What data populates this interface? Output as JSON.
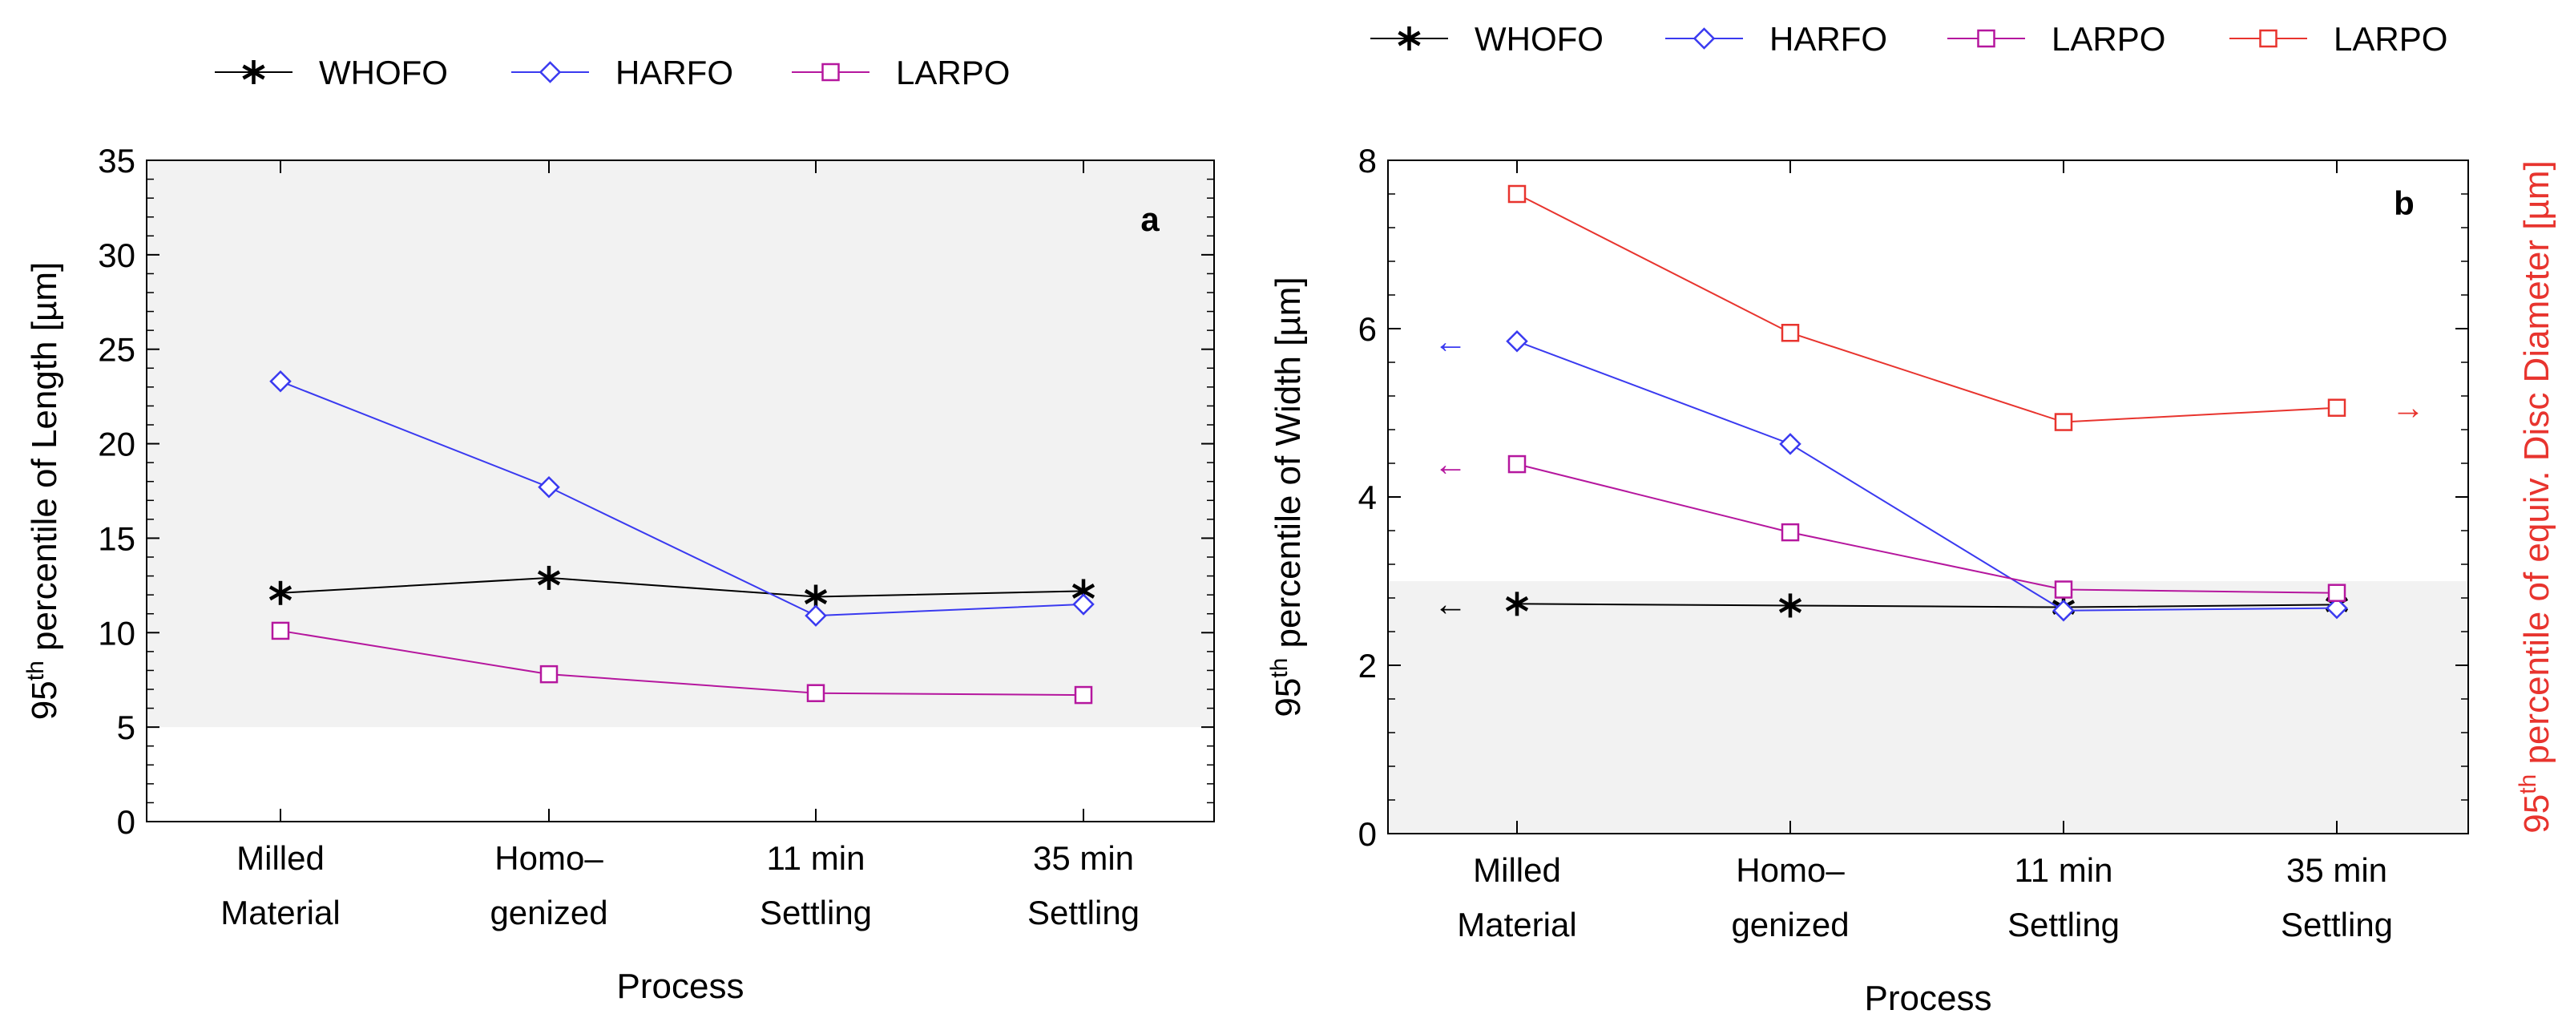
{
  "chart_data": [
    {
      "id": "a",
      "type": "line",
      "panel_label": "a",
      "categories": [
        [
          "Milled",
          "Material"
        ],
        [
          "Homo–",
          "genized"
        ],
        [
          "11 min",
          "Settling"
        ],
        [
          "35 min",
          "Settling"
        ]
      ],
      "xlabel": "Process",
      "ylabel_prefix": "95",
      "ylabel_sup": "th",
      "ylabel_suffix": " percentile of Length [µm]",
      "ylim": [
        0,
        35
      ],
      "yticks": [
        "0",
        "5",
        "10",
        "15",
        "20",
        "25",
        "30",
        "35"
      ],
      "shaded_region": [
        5,
        35
      ],
      "legend_position": "top",
      "series": [
        {
          "name": "WHOFO",
          "color": "#000000",
          "marker": "asterisk",
          "values": [
            12.1,
            12.9,
            11.9,
            12.2
          ]
        },
        {
          "name": "HARFO",
          "color": "#3a3af0",
          "marker": "diamond",
          "values": [
            23.3,
            17.7,
            10.9,
            11.5
          ]
        },
        {
          "name": "LARPO",
          "color": "#b5179e",
          "marker": "square",
          "values": [
            10.1,
            7.8,
            6.8,
            6.7
          ]
        }
      ]
    },
    {
      "id": "b",
      "type": "line",
      "panel_label": "b",
      "categories": [
        [
          "Milled",
          "Material"
        ],
        [
          "Homo–",
          "genized"
        ],
        [
          "11 min",
          "Settling"
        ],
        [
          "35 min",
          "Settling"
        ]
      ],
      "xlabel": "Process",
      "ylabel_prefix": "95",
      "ylabel_sup": "th",
      "ylabel_suffix": " percentile of Width [µm]",
      "y2label_prefix": "95",
      "y2label_sup": "th",
      "y2label_suffix": " percentile of equiv. Disc Diameter [µm]",
      "ylim": [
        0,
        8
      ],
      "yticks": [
        "0",
        "2",
        "4",
        "6",
        "8"
      ],
      "shaded_region": [
        0,
        3
      ],
      "legend_position": "top",
      "arrow_left": "←",
      "arrow_right": "→",
      "series": [
        {
          "name": "WHOFO",
          "color": "#000000",
          "marker": "asterisk",
          "values": [
            2.73,
            2.71,
            2.69,
            2.72
          ],
          "arrow": "left"
        },
        {
          "name": "HARFO",
          "color": "#3a3af0",
          "marker": "diamond",
          "values": [
            5.85,
            4.63,
            2.65,
            2.68
          ],
          "arrow": "left"
        },
        {
          "name": "LARPO",
          "color": "#b5179e",
          "marker": "square",
          "values": [
            4.39,
            3.58,
            2.9,
            2.86
          ],
          "arrow": "left"
        },
        {
          "name": "LARPO",
          "color": "#e8342e",
          "marker": "square",
          "values": [
            7.6,
            5.95,
            4.89,
            5.06
          ],
          "arrow": "right"
        }
      ]
    }
  ]
}
